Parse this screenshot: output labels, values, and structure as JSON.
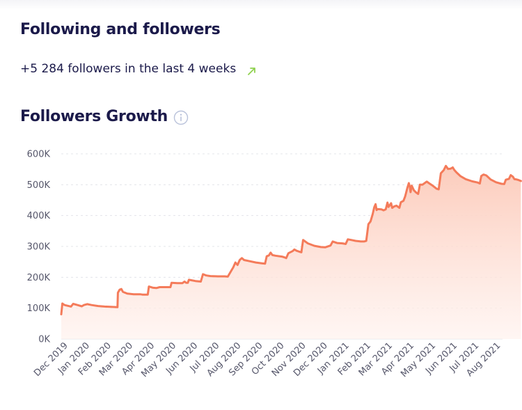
{
  "header": {
    "title": "Following and followers"
  },
  "summary": {
    "text": "+5 284 followers in the last 4 weeks",
    "trend_icon": "arrow-up-right-icon",
    "trend_color": "#8fd14f"
  },
  "growth": {
    "title": "Followers Growth",
    "info_icon": "info-icon"
  },
  "chart_data": {
    "type": "area",
    "title": "Followers Growth",
    "xlabel": "",
    "ylabel": "",
    "ylim": [
      0,
      600000
    ],
    "y_ticks": [
      0,
      100000,
      200000,
      300000,
      400000,
      500000,
      600000
    ],
    "y_tick_labels": [
      "0K",
      "100K",
      "200K",
      "300K",
      "400K",
      "500K",
      "600K"
    ],
    "x_tick_labels": [
      "Dec 2019",
      "Jan 2020",
      "Feb 2020",
      "Mar 2020",
      "Apr 2020",
      "May 2020",
      "Jun 2020",
      "Jul 2020",
      "Aug 2020",
      "Sep 2020",
      "Oct 2020",
      "Nov 2020",
      "Dec 2020",
      "Jan 2021",
      "Feb 2021",
      "Mar 2021",
      "Apr 2021",
      "May 2021",
      "Jun 2021",
      "Jul 2021",
      "Aug 2021"
    ],
    "grid": true,
    "line_color": "#f47b5a",
    "fill_color": "#fde3da",
    "series": [
      {
        "name": "",
        "points": [
          [
            0.0,
            80000
          ],
          [
            0.05,
            115000
          ],
          [
            0.15,
            110000
          ],
          [
            0.45,
            105000
          ],
          [
            0.55,
            114000
          ],
          [
            0.75,
            110000
          ],
          [
            0.95,
            106000
          ],
          [
            1.05,
            110000
          ],
          [
            1.2,
            113000
          ],
          [
            1.4,
            110000
          ],
          [
            1.7,
            107000
          ],
          [
            2.0,
            105000
          ],
          [
            2.35,
            104000
          ],
          [
            2.6,
            103000
          ],
          [
            2.62,
            150000
          ],
          [
            2.7,
            160000
          ],
          [
            2.78,
            162000
          ],
          [
            2.85,
            153000
          ],
          [
            3.05,
            147000
          ],
          [
            3.35,
            145000
          ],
          [
            3.65,
            145000
          ],
          [
            3.75,
            144000
          ],
          [
            4.0,
            144000
          ],
          [
            4.05,
            170000
          ],
          [
            4.25,
            166000
          ],
          [
            4.4,
            165000
          ],
          [
            4.55,
            168000
          ],
          [
            4.85,
            168000
          ],
          [
            5.05,
            168000
          ],
          [
            5.1,
            182000
          ],
          [
            5.4,
            181000
          ],
          [
            5.6,
            181000
          ],
          [
            5.7,
            186000
          ],
          [
            5.78,
            182000
          ],
          [
            5.85,
            182000
          ],
          [
            5.9,
            192000
          ],
          [
            6.2,
            188000
          ],
          [
            6.45,
            186000
          ],
          [
            6.55,
            210000
          ],
          [
            6.7,
            206000
          ],
          [
            6.9,
            204000
          ],
          [
            7.25,
            203000
          ],
          [
            7.55,
            203000
          ],
          [
            7.7,
            202000
          ],
          [
            7.95,
            232000
          ],
          [
            8.05,
            248000
          ],
          [
            8.15,
            240000
          ],
          [
            8.25,
            256000
          ],
          [
            8.35,
            262000
          ],
          [
            8.45,
            256000
          ],
          [
            8.65,
            253000
          ],
          [
            9.0,
            248000
          ],
          [
            9.3,
            245000
          ],
          [
            9.42,
            244000
          ],
          [
            9.5,
            268000
          ],
          [
            9.6,
            271000
          ],
          [
            9.68,
            280000
          ],
          [
            9.76,
            272000
          ],
          [
            9.9,
            270000
          ],
          [
            10.2,
            267000
          ],
          [
            10.3,
            265000
          ],
          [
            10.4,
            262000
          ],
          [
            10.5,
            278000
          ],
          [
            10.7,
            285000
          ],
          [
            10.78,
            290000
          ],
          [
            10.88,
            286000
          ],
          [
            11.0,
            283000
          ],
          [
            11.1,
            281000
          ],
          [
            11.18,
            321000
          ],
          [
            11.4,
            310000
          ],
          [
            11.7,
            302000
          ],
          [
            12.0,
            298000
          ],
          [
            12.2,
            297000
          ],
          [
            12.45,
            303000
          ],
          [
            12.55,
            316000
          ],
          [
            12.75,
            311000
          ],
          [
            13.0,
            310000
          ],
          [
            13.15,
            308000
          ],
          [
            13.25,
            323000
          ],
          [
            13.4,
            321000
          ],
          [
            13.6,
            318000
          ],
          [
            13.85,
            316000
          ],
          [
            14.0,
            316000
          ],
          [
            14.1,
            318000
          ],
          [
            14.2,
            372000
          ],
          [
            14.3,
            381000
          ],
          [
            14.4,
            405000
          ],
          [
            14.47,
            427000
          ],
          [
            14.53,
            437000
          ],
          [
            14.58,
            418000
          ],
          [
            14.63,
            421000
          ],
          [
            14.8,
            420000
          ],
          [
            14.9,
            417000
          ],
          [
            15.0,
            420000
          ],
          [
            15.08,
            442000
          ],
          [
            15.13,
            428000
          ],
          [
            15.17,
            432000
          ],
          [
            15.25,
            440000
          ],
          [
            15.3,
            425000
          ],
          [
            15.4,
            430000
          ],
          [
            15.5,
            432000
          ],
          [
            15.63,
            425000
          ],
          [
            15.7,
            443000
          ],
          [
            15.82,
            448000
          ],
          [
            15.9,
            462000
          ],
          [
            16.0,
            490000
          ],
          [
            16.07,
            505000
          ],
          [
            16.12,
            492000
          ],
          [
            16.15,
            476000
          ],
          [
            16.2,
            497000
          ],
          [
            16.3,
            482000
          ],
          [
            16.4,
            475000
          ],
          [
            16.5,
            470000
          ],
          [
            16.58,
            500000
          ],
          [
            16.7,
            500000
          ],
          [
            16.9,
            510000
          ],
          [
            17.0,
            505000
          ],
          [
            17.15,
            498000
          ],
          [
            17.35,
            487000
          ],
          [
            17.45,
            485000
          ],
          [
            17.55,
            537000
          ],
          [
            17.68,
            547000
          ],
          [
            17.78,
            561000
          ],
          [
            17.88,
            551000
          ],
          [
            18.0,
            552000
          ],
          [
            18.1,
            556000
          ],
          [
            18.17,
            548000
          ],
          [
            18.27,
            540000
          ],
          [
            18.45,
            528000
          ],
          [
            18.7,
            518000
          ],
          [
            19.0,
            511000
          ],
          [
            19.25,
            507000
          ],
          [
            19.35,
            504000
          ],
          [
            19.42,
            528000
          ],
          [
            19.52,
            533000
          ],
          [
            19.65,
            530000
          ],
          [
            19.85,
            517000
          ],
          [
            20.1,
            508000
          ],
          [
            20.35,
            503000
          ],
          [
            20.48,
            502000
          ],
          [
            20.55,
            516000
          ],
          [
            20.7,
            519000
          ],
          [
            20.78,
            531000
          ],
          [
            20.88,
            526000
          ],
          [
            20.95,
            518000
          ],
          [
            21.05,
            517000
          ],
          [
            21.15,
            515000
          ],
          [
            21.25,
            512000
          ]
        ]
      }
    ]
  }
}
